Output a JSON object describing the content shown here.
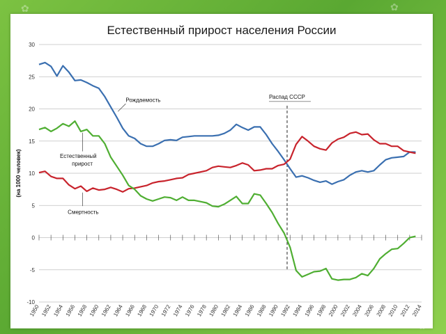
{
  "slide": {
    "title": "Естественный прирост населения России"
  },
  "chart_data": {
    "type": "line",
    "title": "Естественный прирост населения России",
    "ylabel": "(на 1000 человек)",
    "xlabel": "",
    "xlim": [
      1950,
      2014
    ],
    "ylim": [
      -10,
      30
    ],
    "grid": true,
    "y_ticks": [
      "30",
      "25",
      "20",
      "15",
      "10",
      "5",
      "0",
      "-5",
      "-10"
    ],
    "x_ticks": [
      "1950",
      "1952",
      "1954",
      "1956",
      "1958",
      "1960",
      "1962",
      "1964",
      "1966",
      "1968",
      "1970",
      "1972",
      "1974",
      "1976",
      "1978",
      "1980",
      "1982",
      "1984",
      "1986",
      "1988",
      "1990",
      "1992",
      "1994",
      "1996",
      "1998",
      "2000",
      "2002",
      "2004",
      "2006",
      "2008",
      "2010",
      "2012",
      "2014"
    ],
    "annotations": {
      "birth": "Рождаемость",
      "natural1": "Естественный",
      "natural2": "прирост",
      "death": "Смертность",
      "ussr": "Распад СССР"
    },
    "ussr_year": 1991.5,
    "colors": {
      "birth": "#3a6fb0",
      "death": "#c8232c",
      "natural": "#4fae32"
    },
    "series": [
      {
        "key": "birth",
        "x": [
          1950,
          1951,
          1952,
          1953,
          1954,
          1955,
          1956,
          1957,
          1958,
          1959,
          1960,
          1961,
          1962,
          1963,
          1964,
          1965,
          1966,
          1967,
          1968,
          1969,
          1970,
          1971,
          1972,
          1973,
          1974,
          1975,
          1976,
          1977,
          1978,
          1979,
          1980,
          1981,
          1982,
          1983,
          1984,
          1985,
          1986,
          1987,
          1988,
          1989,
          1990,
          1991,
          1992,
          1993,
          1994,
          1995,
          1996,
          1997,
          1998,
          1999,
          2000,
          2001,
          2002,
          2003,
          2004,
          2005,
          2006,
          2007,
          2008,
          2009,
          2010,
          2011,
          2012,
          2013
        ],
        "values": [
          26.9,
          27.2,
          26.6,
          25.1,
          26.7,
          25.7,
          24.4,
          24.5,
          24.1,
          23.6,
          23.2,
          21.9,
          20.3,
          18.7,
          17.0,
          15.8,
          15.4,
          14.6,
          14.2,
          14.2,
          14.6,
          15.1,
          15.2,
          15.1,
          15.6,
          15.7,
          15.8,
          15.8,
          15.8,
          15.8,
          15.9,
          16.2,
          16.7,
          17.6,
          17.1,
          16.7,
          17.2,
          17.2,
          16.0,
          14.6,
          13.4,
          12.1,
          10.7,
          9.4,
          9.6,
          9.3,
          8.9,
          8.6,
          8.8,
          8.3,
          8.7,
          9.0,
          9.7,
          10.2,
          10.4,
          10.2,
          10.4,
          11.3,
          12.1,
          12.4,
          12.5,
          12.6,
          13.3,
          13.3
        ]
      },
      {
        "key": "death",
        "x": [
          1950,
          1951,
          1952,
          1953,
          1954,
          1955,
          1956,
          1957,
          1958,
          1959,
          1960,
          1961,
          1962,
          1963,
          1964,
          1965,
          1966,
          1967,
          1968,
          1969,
          1970,
          1971,
          1972,
          1973,
          1974,
          1975,
          1976,
          1977,
          1978,
          1979,
          1980,
          1981,
          1982,
          1983,
          1984,
          1985,
          1986,
          1987,
          1988,
          1989,
          1990,
          1991,
          1992,
          1993,
          1994,
          1995,
          1996,
          1997,
          1998,
          1999,
          2000,
          2001,
          2002,
          2003,
          2004,
          2005,
          2006,
          2007,
          2008,
          2009,
          2010,
          2011,
          2012,
          2013
        ],
        "values": [
          10.1,
          10.3,
          9.5,
          9.2,
          9.2,
          8.2,
          7.6,
          8.0,
          7.2,
          7.7,
          7.4,
          7.5,
          7.8,
          7.5,
          7.1,
          7.6,
          7.7,
          7.9,
          8.1,
          8.5,
          8.7,
          8.8,
          9.0,
          9.2,
          9.3,
          9.8,
          10.0,
          10.2,
          10.4,
          10.9,
          11.1,
          11.0,
          10.9,
          11.2,
          11.6,
          11.3,
          10.4,
          10.5,
          10.7,
          10.7,
          11.2,
          11.4,
          12.2,
          14.5,
          15.7,
          15.0,
          14.2,
          13.8,
          13.6,
          14.7,
          15.3,
          15.6,
          16.2,
          16.4,
          16.0,
          16.1,
          15.2,
          14.6,
          14.6,
          14.2,
          14.2,
          13.5,
          13.3,
          13.1
        ]
      },
      {
        "key": "natural",
        "x": [
          1950,
          1951,
          1952,
          1953,
          1954,
          1955,
          1956,
          1957,
          1958,
          1959,
          1960,
          1961,
          1962,
          1963,
          1964,
          1965,
          1966,
          1967,
          1968,
          1969,
          1970,
          1971,
          1972,
          1973,
          1974,
          1975,
          1976,
          1977,
          1978,
          1979,
          1980,
          1981,
          1982,
          1983,
          1984,
          1985,
          1986,
          1987,
          1988,
          1989,
          1990,
          1991,
          1992,
          1993,
          1994,
          1995,
          1996,
          1997,
          1998,
          1999,
          2000,
          2001,
          2002,
          2003,
          2004,
          2005,
          2006,
          2007,
          2008,
          2009,
          2010,
          2011,
          2012,
          2013
        ],
        "values": [
          16.8,
          17.1,
          16.5,
          17.0,
          17.7,
          17.3,
          18.1,
          16.5,
          16.8,
          15.8,
          15.8,
          14.6,
          12.5,
          11.1,
          9.7,
          8.1,
          7.5,
          6.5,
          6.0,
          5.7,
          6.0,
          6.3,
          6.2,
          5.8,
          6.3,
          5.8,
          5.8,
          5.6,
          5.4,
          4.9,
          4.8,
          5.2,
          5.8,
          6.4,
          5.3,
          5.3,
          6.8,
          6.6,
          5.3,
          3.9,
          2.2,
          0.7,
          -1.5,
          -5.1,
          -6.1,
          -5.7,
          -5.3,
          -5.2,
          -4.8,
          -6.4,
          -6.6,
          -6.5,
          -6.5,
          -6.2,
          -5.6,
          -5.9,
          -4.8,
          -3.3,
          -2.5,
          -1.8,
          -1.7,
          -0.9,
          0.0,
          0.2
        ]
      }
    ]
  }
}
